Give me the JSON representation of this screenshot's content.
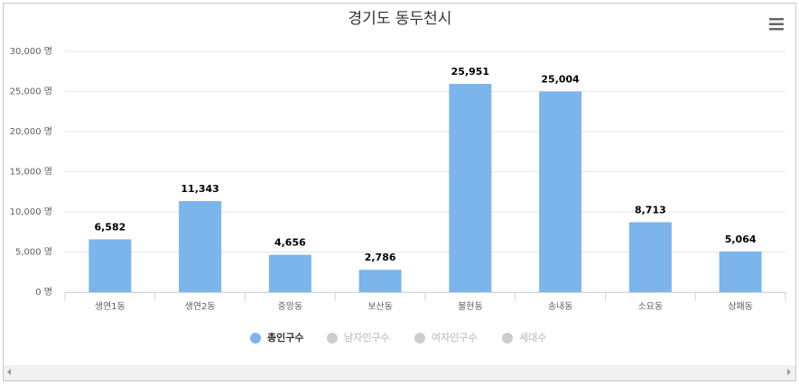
{
  "chart_data": {
    "type": "bar",
    "title": "경기도 동두천시",
    "categories": [
      "생연1동",
      "생연2동",
      "중앙동",
      "보산동",
      "불현동",
      "송내동",
      "소요동",
      "상패동"
    ],
    "series": [
      {
        "name": "총인구수",
        "color": "#7cb5ec",
        "visible": true,
        "values": [
          6582,
          11343,
          4656,
          2786,
          25951,
          25004,
          8713,
          5064
        ],
        "value_labels": [
          "6,582",
          "11,343",
          "4,656",
          "2,786",
          "25,951",
          "25,004",
          "8,713",
          "5,064"
        ]
      },
      {
        "name": "남자인구수",
        "color": "#cccccc",
        "visible": false
      },
      {
        "name": "여자인구수",
        "color": "#cccccc",
        "visible": false
      },
      {
        "name": "세대수",
        "color": "#cccccc",
        "visible": false
      }
    ],
    "ylim": [
      0,
      30000
    ],
    "yticks": [
      {
        "value": 0,
        "label": "0 명"
      },
      {
        "value": 5000,
        "label": "5,000 명"
      },
      {
        "value": 10000,
        "label": "10,000 명"
      },
      {
        "value": 15000,
        "label": "15,000 명"
      },
      {
        "value": 20000,
        "label": "20,000 명"
      },
      {
        "value": 25000,
        "label": "25,000 명"
      },
      {
        "value": 30000,
        "label": "30,000 명"
      }
    ],
    "grid": true
  }
}
